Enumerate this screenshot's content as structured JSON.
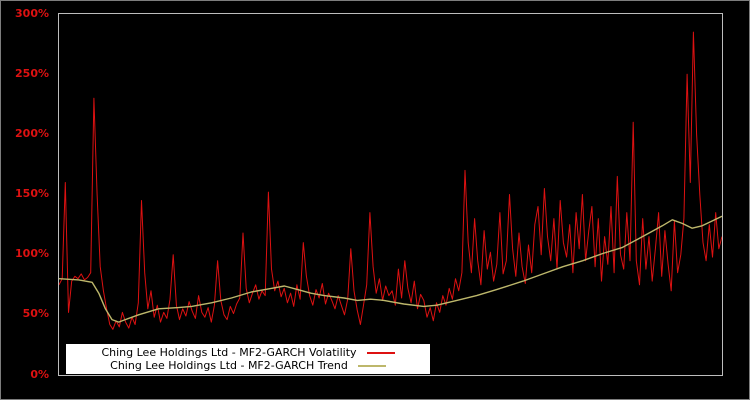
{
  "figure": {
    "background": "#000000",
    "plot_border_color": "#bdbdbd"
  },
  "chart_data": {
    "type": "line",
    "title": "",
    "xlabel": "",
    "ylabel": "",
    "ylim": [
      0,
      300
    ],
    "grid": false,
    "legend_position": "bottom-left",
    "tick_label_color": "#dd1111",
    "y_tick_values": [
      0,
      50,
      100,
      150,
      200,
      250,
      300
    ],
    "y_ticks": [
      "0%",
      "50%",
      "100%",
      "150%",
      "200%",
      "250%",
      "300%"
    ],
    "series": [
      {
        "name": "Ching Lee Holdings Ltd - MF2-GARCH Volatility",
        "color": "#dd1111",
        "unit": "percent",
        "values": [
          75,
          80,
          160,
          52,
          78,
          82,
          80,
          84,
          79,
          81,
          85,
          230,
          150,
          90,
          70,
          55,
          42,
          38,
          45,
          40,
          52,
          44,
          39,
          48,
          42,
          60,
          145,
          85,
          55,
          70,
          48,
          58,
          44,
          52,
          47,
          63,
          100,
          58,
          46,
          55,
          49,
          61,
          53,
          47,
          66,
          52,
          48,
          56,
          44,
          58,
          95,
          62,
          50,
          46,
          57,
          51,
          59,
          64,
          118,
          72,
          60,
          68,
          75,
          63,
          70,
          66,
          152,
          88,
          70,
          78,
          65,
          72,
          60,
          68,
          57,
          75,
          63,
          110,
          82,
          66,
          58,
          71,
          64,
          76,
          59,
          68,
          62,
          55,
          66,
          58,
          50,
          63,
          105,
          70,
          54,
          42,
          58,
          75,
          135,
          90,
          68,
          80,
          62,
          74,
          66,
          70,
          58,
          88,
          64,
          95,
          72,
          60,
          78,
          55,
          67,
          62,
          48,
          56,
          45,
          60,
          52,
          66,
          58,
          72,
          63,
          80,
          70,
          85,
          170,
          110,
          85,
          130,
          95,
          75,
          120,
          88,
          102,
          78,
          92,
          135,
          84,
          95,
          150,
          105,
          82,
          118,
          90,
          76,
          108,
          85,
          125,
          140,
          100,
          155,
          115,
          95,
          130,
          88,
          145,
          110,
          98,
          125,
          85,
          135,
          105,
          150,
          95,
          120,
          140,
          90,
          130,
          78,
          115,
          92,
          140,
          85,
          165,
          100,
          88,
          135,
          95,
          210,
          95,
          75,
          130,
          88,
          115,
          78,
          105,
          135,
          82,
          120,
          92,
          70,
          128,
          85,
          100,
          130,
          250,
          160,
          285,
          200,
          150,
          110,
          95,
          125,
          98,
          135,
          105,
          115
        ]
      },
      {
        "name": "Ching Lee Holdings Ltd - MF2-GARCH Trend",
        "color": "#bdb76b",
        "unit": "percent",
        "anchors": [
          [
            0,
            80
          ],
          [
            0.03,
            79
          ],
          [
            0.05,
            77
          ],
          [
            0.06,
            68
          ],
          [
            0.07,
            55
          ],
          [
            0.08,
            46
          ],
          [
            0.09,
            44
          ],
          [
            0.1,
            46
          ],
          [
            0.12,
            50
          ],
          [
            0.15,
            55
          ],
          [
            0.18,
            56
          ],
          [
            0.2,
            57
          ],
          [
            0.23,
            60
          ],
          [
            0.26,
            64
          ],
          [
            0.29,
            69
          ],
          [
            0.32,
            72
          ],
          [
            0.34,
            74
          ],
          [
            0.36,
            71
          ],
          [
            0.38,
            68
          ],
          [
            0.4,
            66
          ],
          [
            0.43,
            64
          ],
          [
            0.45,
            62
          ],
          [
            0.47,
            63
          ],
          [
            0.49,
            62
          ],
          [
            0.52,
            59
          ],
          [
            0.55,
            57
          ],
          [
            0.57,
            58
          ],
          [
            0.6,
            62
          ],
          [
            0.63,
            66
          ],
          [
            0.66,
            71
          ],
          [
            0.7,
            78
          ],
          [
            0.73,
            84
          ],
          [
            0.76,
            90
          ],
          [
            0.79,
            95
          ],
          [
            0.82,
            101
          ],
          [
            0.85,
            106
          ],
          [
            0.87,
            112
          ],
          [
            0.89,
            118
          ],
          [
            0.91,
            124
          ],
          [
            0.925,
            129
          ],
          [
            0.94,
            126
          ],
          [
            0.955,
            122
          ],
          [
            0.97,
            124
          ],
          [
            0.985,
            128
          ],
          [
            1.0,
            132
          ]
        ]
      }
    ]
  },
  "legend": {
    "items": [
      {
        "label": "Ching Lee Holdings Ltd - MF2-GARCH Volatility",
        "color": "#dd1111"
      },
      {
        "label": "Ching Lee Holdings Ltd - MF2-GARCH Trend",
        "color": "#bdb76b"
      }
    ]
  }
}
